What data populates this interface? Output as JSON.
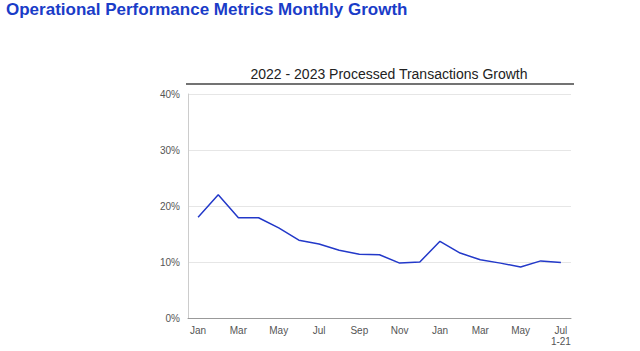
{
  "header": "Operational Performance Metrics Monthly Growth",
  "chart_data": {
    "type": "line",
    "title": "2022 - 2023 Processed Transactions Growth",
    "categories": [
      "Jan",
      null,
      "Mar",
      null,
      "May",
      null,
      "Jul",
      null,
      "Sep",
      null,
      "Nov",
      null,
      "Jan",
      null,
      "Mar",
      null,
      "May",
      null,
      "Jul\n1-21"
    ],
    "values": [
      18.0,
      22.0,
      17.9,
      17.9,
      16.1,
      13.9,
      13.2,
      12.1,
      11.4,
      11.3,
      9.8,
      10.0,
      13.7,
      11.6,
      10.4,
      9.8,
      9.1,
      10.2,
      9.9
    ],
    "color": "#2339c9",
    "ylim": [
      0,
      40
    ],
    "yticks": [
      {
        "value": 0,
        "label": "0%"
      },
      {
        "value": 10,
        "label": "10%"
      },
      {
        "value": 20,
        "label": "20%"
      },
      {
        "value": 30,
        "label": "30%"
      },
      {
        "value": 40,
        "label": "40%"
      }
    ],
    "grid": true
  }
}
